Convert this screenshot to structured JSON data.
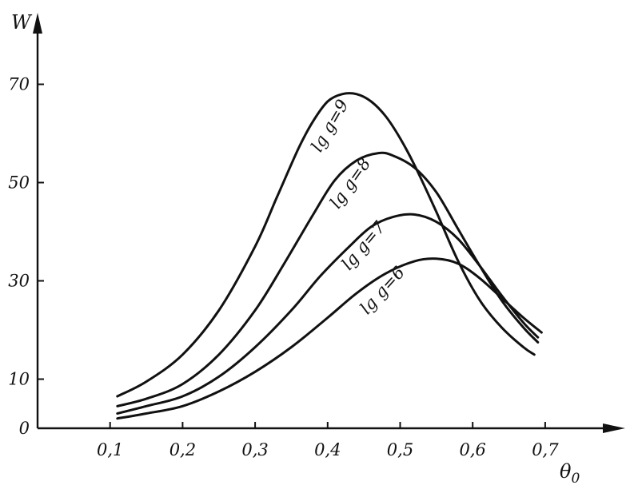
{
  "chart_data": {
    "type": "line",
    "ylabel": "W",
    "xlabel": "θ",
    "xlabel_sub": "0",
    "xlim": [
      0,
      0.82
    ],
    "ylim": [
      0,
      80
    ],
    "xticks": [
      {
        "value": 0.1,
        "label": "0,1"
      },
      {
        "value": 0.2,
        "label": "0,2"
      },
      {
        "value": 0.3,
        "label": "0,3"
      },
      {
        "value": 0.4,
        "label": "0,4"
      },
      {
        "value": 0.5,
        "label": "0,5"
      },
      {
        "value": 0.6,
        "label": "0,6"
      },
      {
        "value": 0.7,
        "label": "0,7"
      }
    ],
    "yticks": [
      {
        "value": 0,
        "label": "0"
      },
      {
        "value": 10,
        "label": "10"
      },
      {
        "value": 30,
        "label": "30"
      },
      {
        "value": 50,
        "label": "50"
      },
      {
        "value": 70,
        "label": "70"
      }
    ],
    "grid": false,
    "series": [
      {
        "name": "lg g=9",
        "x": [
          0.11,
          0.15,
          0.2,
          0.25,
          0.3,
          0.33,
          0.36,
          0.38,
          0.4,
          0.42,
          0.44,
          0.46,
          0.48,
          0.5,
          0.52,
          0.55,
          0.58,
          0.61,
          0.64,
          0.67,
          0.685
        ],
        "y": [
          6.5,
          9.5,
          15,
          24,
          37,
          47,
          57,
          62.5,
          66.5,
          68,
          68,
          66.5,
          63.5,
          59,
          53.5,
          44,
          34,
          26,
          20.5,
          16.5,
          15
        ]
      },
      {
        "name": "lg g=8",
        "x": [
          0.11,
          0.15,
          0.2,
          0.25,
          0.3,
          0.34,
          0.38,
          0.41,
          0.44,
          0.47,
          0.49,
          0.52,
          0.55,
          0.58,
          0.61,
          0.64,
          0.67,
          0.69
        ],
        "y": [
          4.5,
          6,
          9,
          15,
          24,
          33.5,
          43.5,
          50.5,
          54.5,
          56,
          55.5,
          53,
          48,
          40.5,
          33,
          26,
          20.5,
          17.5
        ]
      },
      {
        "name": "lg g=7",
        "x": [
          0.11,
          0.15,
          0.2,
          0.25,
          0.3,
          0.35,
          0.39,
          0.43,
          0.46,
          0.49,
          0.52,
          0.55,
          0.58,
          0.61,
          0.64,
          0.67,
          0.69
        ],
        "y": [
          3,
          4.5,
          6.5,
          10.5,
          16.5,
          24,
          31,
          37,
          41,
          43,
          43.5,
          42,
          38.5,
          33,
          27,
          21.5,
          18.5
        ]
      },
      {
        "name": "lg g=6",
        "x": [
          0.11,
          0.15,
          0.2,
          0.25,
          0.3,
          0.35,
          0.4,
          0.44,
          0.48,
          0.52,
          0.55,
          0.58,
          0.61,
          0.64,
          0.67,
          0.695
        ],
        "y": [
          2,
          3,
          4.5,
          7.5,
          11.5,
          16.5,
          22.5,
          27.5,
          31.5,
          34,
          34.5,
          33.5,
          30.5,
          26.5,
          22.5,
          19.5
        ]
      }
    ],
    "curve_labels": [
      {
        "text": "lg g=9",
        "series": 0,
        "anchor_x": 0.39,
        "anchor_y": 56,
        "angle": -60
      },
      {
        "text": "lg g=8",
        "series": 1,
        "anchor_x": 0.415,
        "anchor_y": 44.5,
        "angle": -55
      },
      {
        "text": "lg g=7",
        "series": 2,
        "anchor_x": 0.43,
        "anchor_y": 32,
        "angle": -50
      },
      {
        "text": "lg g=6",
        "series": 3,
        "anchor_x": 0.455,
        "anchor_y": 23,
        "angle": -48
      }
    ]
  }
}
